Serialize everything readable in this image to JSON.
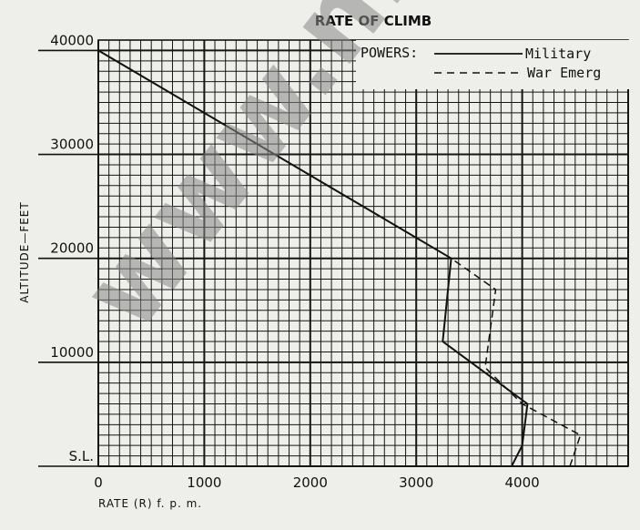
{
  "chart_data": {
    "type": "line",
    "title": "RATE OF CLIMB",
    "xlabel": "RATE (R) f. p. m.",
    "ylabel": "ALTITUDE—FEET",
    "xlim": [
      0,
      5000
    ],
    "ylim": [
      0,
      41000
    ],
    "x_ticks": [
      0,
      1000,
      2000,
      3000,
      4000
    ],
    "x_tick_labels": [
      "0",
      "1000",
      "2000",
      "3000",
      "4000"
    ],
    "y_ticks": [
      0,
      10000,
      20000,
      30000,
      40000
    ],
    "y_tick_labels": [
      "S.L.",
      "10000",
      "20000",
      "30000",
      "40000"
    ],
    "grid": true,
    "legend_title": "POWERS:",
    "legend_position": "top-right",
    "series": [
      {
        "name": "Military",
        "line_style": "solid",
        "x": [
          3900,
          4000,
          4050,
          3250,
          3330,
          0
        ],
        "y": [
          0,
          2000,
          6000,
          12000,
          20000,
          40000
        ]
      },
      {
        "name": "War Emerg",
        "line_style": "dashed",
        "x": [
          4450,
          4550,
          4000,
          3650,
          3750,
          3330
        ],
        "y": [
          0,
          3000,
          6000,
          9500,
          17000,
          20000
        ]
      }
    ],
    "watermark": "www.mallec"
  }
}
